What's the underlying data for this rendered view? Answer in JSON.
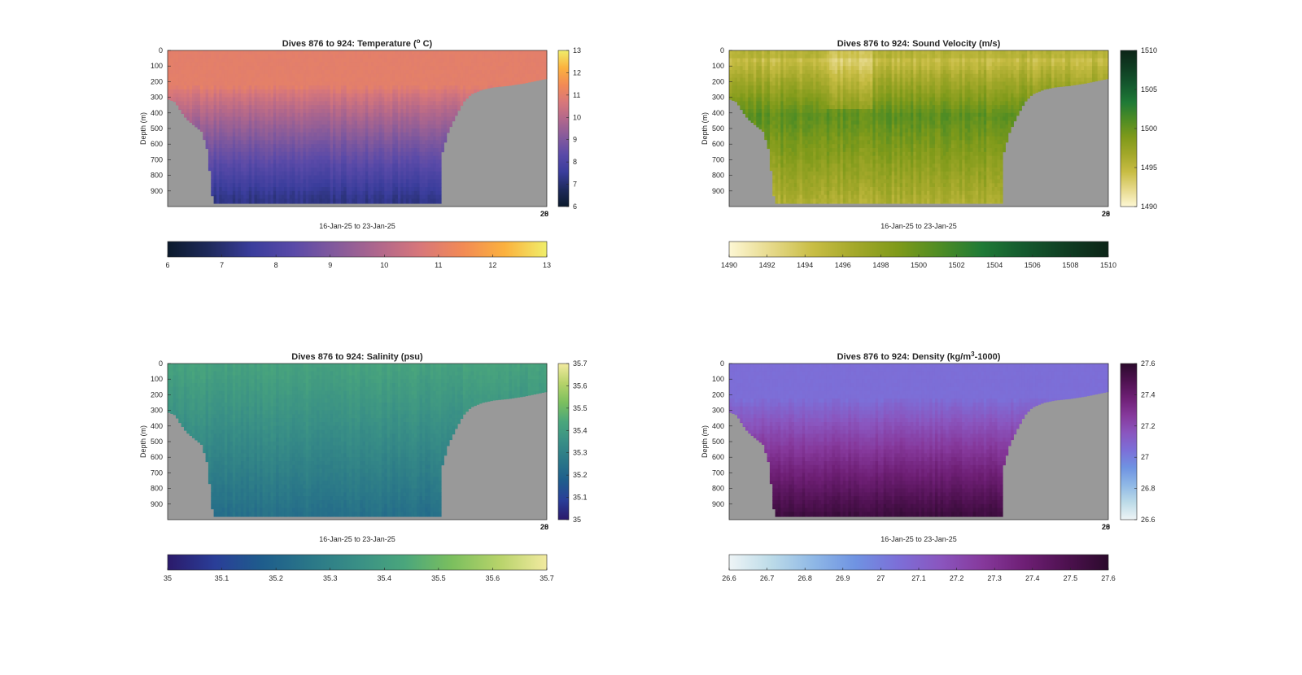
{
  "chart_data": [
    {
      "type": "heatmap",
      "title": "Dives 876 to 924: Temperature (",
      "title_sup": "o",
      "title_tail": " C)",
      "xlabel": "16-Jan-25 to 23-Jan-25",
      "ylabel": "Depth (m)",
      "y_ticks": [
        "0",
        "100",
        "200",
        "300",
        "400",
        "500",
        "600",
        "700",
        "800",
        "900"
      ],
      "ylim": [
        0,
        1000
      ],
      "x_tick_labels": [
        "20",
        "28"
      ],
      "colorbar_right_ticks": [
        "13",
        "12",
        "11",
        "10",
        "9",
        "8",
        "7",
        "6"
      ],
      "colorbar_bottom_ticks": [
        "6",
        "7",
        "8",
        "9",
        "10",
        "11",
        "12",
        "13"
      ],
      "clim": [
        6,
        13
      ],
      "colormap": [
        "#0b1a2c",
        "#1f2a5c",
        "#3a3d9c",
        "#5a4aa8",
        "#845a9c",
        "#b0678c",
        "#d8777a",
        "#f28a55",
        "#fbb13e",
        "#f0ee6a"
      ],
      "surface_value": 11,
      "bottom_value": 7.3,
      "background_color": "#999999"
    },
    {
      "type": "heatmap",
      "title": "Dives 876 to 924: Sound Velocity (m/s)",
      "xlabel": "16-Jan-25 to 23-Jan-25",
      "ylabel": "Depth (m)",
      "y_ticks": [
        "0",
        "100",
        "200",
        "300",
        "400",
        "500",
        "600",
        "700",
        "800",
        "900"
      ],
      "ylim": [
        0,
        1000
      ],
      "x_tick_labels": [
        "20",
        "28"
      ],
      "colorbar_right_ticks": [
        "1510",
        "1505",
        "1500",
        "1495",
        "1490"
      ],
      "colorbar_bottom_ticks": [
        "1490",
        "1492",
        "1494",
        "1496",
        "1498",
        "1500",
        "1502",
        "1504",
        "1506",
        "1508",
        "1510"
      ],
      "clim": [
        1490,
        1510
      ],
      "colormap": [
        "#fdf7d4",
        "#e6d98a",
        "#c8bd44",
        "#a3a82a",
        "#7f9a1a",
        "#4e8c24",
        "#1f7a36",
        "#14592e",
        "#0f3d22",
        "#0c2417"
      ],
      "surface_value": 1494.5,
      "mid_value": 1500.5,
      "bottom_value": 1496,
      "background_color": "#999999"
    },
    {
      "type": "heatmap",
      "title": "Dives 876 to 924: Salinity (psu)",
      "xlabel": "16-Jan-25 to 23-Jan-25",
      "ylabel": "Depth (m)",
      "y_ticks": [
        "0",
        "100",
        "200",
        "300",
        "400",
        "500",
        "600",
        "700",
        "800",
        "900"
      ],
      "ylim": [
        0,
        1000
      ],
      "x_tick_labels": [
        "20",
        "28"
      ],
      "colorbar_right_ticks": [
        "35.7",
        "35.6",
        "35.5",
        "35.4",
        "35.3",
        "35.2",
        "35.1",
        "35"
      ],
      "colorbar_bottom_ticks": [
        "35",
        "35.1",
        "35.2",
        "35.3",
        "35.4",
        "35.5",
        "35.6",
        "35.7"
      ],
      "clim": [
        35,
        35.7
      ],
      "colormap": [
        "#2b1a6b",
        "#2a3e98",
        "#1e5d8c",
        "#2a7788",
        "#398f86",
        "#4aa67c",
        "#7bbf5e",
        "#b7d36a",
        "#f2eaa0"
      ],
      "surface_value": 35.42,
      "bottom_value": 35.24,
      "background_color": "#999999"
    },
    {
      "type": "heatmap",
      "title": "Dives 876 to 924: Density (kg/m",
      "title_sup": "3",
      "title_tail": "-1000)",
      "xlabel": "16-Jan-25 to 23-Jan-25",
      "ylabel": "Depth (m)",
      "y_ticks": [
        "0",
        "100",
        "200",
        "300",
        "400",
        "500",
        "600",
        "700",
        "800",
        "900"
      ],
      "ylim": [
        0,
        1000
      ],
      "x_tick_labels": [
        "20",
        "28"
      ],
      "colorbar_right_ticks": [
        "27.6",
        "27.4",
        "27.2",
        "27",
        "26.8",
        "26.6"
      ],
      "colorbar_bottom_ticks": [
        "26.6",
        "26.7",
        "26.8",
        "26.9",
        "27",
        "27.1",
        "27.2",
        "27.3",
        "27.4",
        "27.5",
        "27.6"
      ],
      "clim": [
        26.6,
        27.6
      ],
      "colormap": [
        "#eef4f6",
        "#bcdbe8",
        "#8fb8e6",
        "#6f93e2",
        "#7c6fd8",
        "#8a56bf",
        "#86399c",
        "#6e1f75",
        "#4e1150",
        "#2b0a2c"
      ],
      "surface_value": 27.05,
      "bottom_value": 27.55,
      "background_color": "#999999"
    }
  ]
}
